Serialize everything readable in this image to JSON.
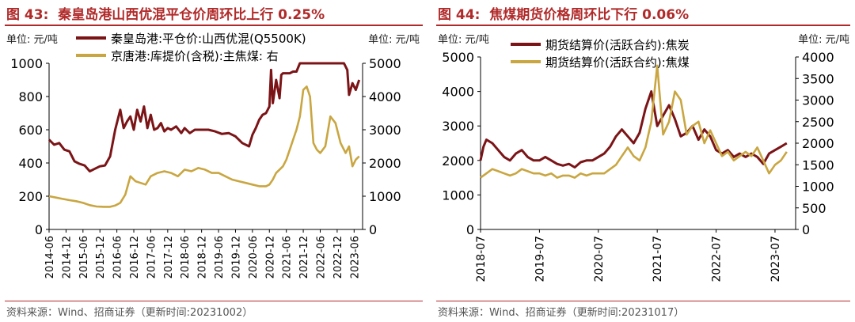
{
  "charts": [
    {
      "figure": "图 43:",
      "title": "秦皇岛港山西优混平仓价周环比上行 0.25%",
      "source": "资料来源：Wind、招商证券（更新时间:20231002）",
      "left_unit": "单位:  元/吨",
      "right_unit": "单位:  元/吨",
      "colors": {
        "series1": "#7b1417",
        "series2": "#c9a641"
      },
      "chart_data": {
        "type": "line",
        "xlabels": [
          "2014-06",
          "2014-12",
          "2015-06",
          "2015-12",
          "2016-06",
          "2016-12",
          "2017-06",
          "2017-12",
          "2018-06",
          "2018-12",
          "2019-06",
          "2019-12",
          "2020-06",
          "2020-12",
          "2021-06",
          "2021-12",
          "2022-06",
          "2022-12",
          "2023-06"
        ],
        "ylim_left": [
          0,
          1000
        ],
        "yticks_left": [
          0,
          200,
          400,
          600,
          800,
          1000
        ],
        "ylim_right": [
          0,
          5000
        ],
        "yticks_right": [
          0,
          1000,
          2000,
          3000,
          4000,
          5000
        ],
        "series": [
          {
            "name": "秦皇岛港:平仓价:山西优混(Q5500K)",
            "axis": "left",
            "x": [
              0,
              0.3,
              0.6,
              0.9,
              1.2,
              1.5,
              1.8,
              2.1,
              2.4,
              2.7,
              3.0,
              3.3,
              3.6,
              3.9,
              4.2,
              4.4,
              4.6,
              4.8,
              5.0,
              5.2,
              5.4,
              5.6,
              5.8,
              6.0,
              6.2,
              6.4,
              6.6,
              6.8,
              7.0,
              7.2,
              7.5,
              7.8,
              8.0,
              8.3,
              8.6,
              9.0,
              9.4,
              9.8,
              10.2,
              10.6,
              11.0,
              11.4,
              11.8,
              12.0,
              12.2,
              12.4,
              12.6,
              12.8,
              13.0,
              13.1,
              13.2,
              13.4,
              13.6,
              13.7,
              13.8,
              14.0,
              14.2,
              14.4,
              14.6,
              14.8,
              15.0,
              15.2,
              15.4,
              15.6,
              15.8,
              15.9,
              16.0,
              16.2,
              16.4,
              16.6,
              16.8,
              17.0,
              17.2,
              17.4,
              17.6,
              17.7,
              17.9,
              18.1,
              18.3
            ],
            "y": [
              540,
              510,
              520,
              480,
              470,
              410,
              395,
              385,
              350,
              365,
              380,
              385,
              440,
              600,
              720,
              610,
              650,
              680,
              600,
              720,
              650,
              740,
              610,
              690,
              600,
              610,
              640,
              590,
              610,
              600,
              620,
              580,
              610,
              580,
              600,
              600,
              600,
              590,
              575,
              580,
              560,
              520,
              500,
              570,
              610,
              660,
              690,
              700,
              740,
              960,
              760,
              900,
              790,
              930,
              940,
              940,
              940,
              950,
              950,
              1000,
              1000,
              1000,
              1000,
              1000,
              1000,
              1000,
              1000,
              1000,
              1000,
              1000,
              1000,
              1000,
              1000,
              1000,
              960,
              810,
              880,
              840,
              900
            ]
          },
          {
            "name": "京唐港:库提价(含税):主焦煤:  右",
            "axis": "right",
            "x": [
              0,
              0.4,
              0.8,
              1.2,
              1.6,
              2.0,
              2.4,
              2.8,
              3.2,
              3.6,
              3.9,
              4.2,
              4.5,
              4.8,
              5.1,
              5.4,
              5.7,
              6.0,
              6.4,
              6.8,
              7.2,
              7.6,
              8.0,
              8.4,
              8.8,
              9.2,
              9.6,
              10.0,
              10.4,
              10.8,
              11.2,
              11.6,
              12.0,
              12.4,
              12.8,
              13.0,
              13.2,
              13.4,
              13.6,
              13.8,
              14.0,
              14.2,
              14.4,
              14.6,
              14.8,
              15.0,
              15.2,
              15.4,
              15.6,
              15.8,
              16.0,
              16.3,
              16.6,
              16.9,
              17.2,
              17.5,
              17.7,
              17.9,
              18.1,
              18.3
            ],
            "y": [
              1000,
              960,
              920,
              880,
              850,
              800,
              730,
              690,
              680,
              680,
              720,
              800,
              1050,
              1600,
              1450,
              1400,
              1350,
              1600,
              1700,
              1750,
              1700,
              1600,
              1800,
              1750,
              1850,
              1800,
              1700,
              1700,
              1600,
              1500,
              1450,
              1400,
              1350,
              1300,
              1300,
              1350,
              1500,
              1700,
              1800,
              1900,
              2100,
              2400,
              2700,
              3000,
              3400,
              4200,
              4300,
              4000,
              2600,
              2400,
              2300,
              2500,
              3400,
              3200,
              2600,
              2300,
              2500,
              1900,
              2100,
              2200
            ]
          }
        ]
      }
    },
    {
      "figure": "图 44:",
      "title": "焦煤期货价格周环比下行 0.06%",
      "source": "资料来源：Wind、招商证券（更新时间:20231017）",
      "left_unit": "单位:  元/吨",
      "right_unit": "单位:  元/吨",
      "colors": {
        "series1": "#7b1417",
        "series2": "#c9a641"
      },
      "chart_data": {
        "type": "line",
        "xlabels": [
          "2018-07",
          "2019-07",
          "2020-07",
          "2021-07",
          "2022-07",
          "2023-07"
        ],
        "ylim_left": [
          0,
          5000
        ],
        "yticks_left": [
          0,
          1000,
          2000,
          3000,
          4000,
          5000
        ],
        "ylim_right": [
          0,
          4000
        ],
        "yticks_right": [
          0,
          500,
          1000,
          1500,
          2000,
          2500,
          3000,
          3500,
          4000
        ],
        "series": [
          {
            "name": "期货结算价(活跃合约):焦炭",
            "axis": "left",
            "x": [
              0,
              0.05,
              0.1,
              0.2,
              0.3,
              0.4,
              0.5,
              0.6,
              0.7,
              0.8,
              0.9,
              1.0,
              1.1,
              1.2,
              1.3,
              1.4,
              1.5,
              1.6,
              1.7,
              1.8,
              1.9,
              2.0,
              2.1,
              2.2,
              2.3,
              2.4,
              2.5,
              2.6,
              2.7,
              2.8,
              2.9,
              3.0,
              3.1,
              3.2,
              3.3,
              3.4,
              3.5,
              3.6,
              3.7,
              3.8,
              3.9,
              4.0,
              4.1,
              4.2,
              4.3,
              4.4,
              4.5,
              4.6,
              4.7,
              4.8,
              4.9,
              5.0,
              5.1,
              5.2
            ],
            "y": [
              2000,
              2400,
              2600,
              2500,
              2300,
              2100,
              2000,
              2200,
              2300,
              2100,
              2000,
              2000,
              2100,
              2000,
              1900,
              1850,
              1900,
              1800,
              1950,
              2000,
              2000,
              2100,
              2200,
              2400,
              2700,
              2900,
              2700,
              2500,
              2800,
              3500,
              4000,
              3000,
              3300,
              3600,
              3200,
              2700,
              2800,
              3000,
              2600,
              2900,
              2700,
              2300,
              2200,
              2300,
              2100,
              2200,
              2100,
              2200,
              2100,
              1900,
              2200,
              2300,
              2400,
              2500
            ]
          },
          {
            "name": "期货结算价(活跃合约):焦煤",
            "axis": "right",
            "x": [
              0,
              0.1,
              0.2,
              0.3,
              0.4,
              0.5,
              0.6,
              0.7,
              0.8,
              0.9,
              1.0,
              1.1,
              1.2,
              1.3,
              1.4,
              1.5,
              1.6,
              1.7,
              1.8,
              1.9,
              2.0,
              2.1,
              2.2,
              2.3,
              2.4,
              2.5,
              2.6,
              2.7,
              2.8,
              2.9,
              3.0,
              3.1,
              3.2,
              3.3,
              3.4,
              3.5,
              3.6,
              3.7,
              3.8,
              3.9,
              4.0,
              4.1,
              4.2,
              4.3,
              4.4,
              4.5,
              4.6,
              4.7,
              4.8,
              4.9,
              5.0,
              5.1,
              5.2
            ],
            "y": [
              1200,
              1300,
              1400,
              1350,
              1300,
              1250,
              1300,
              1400,
              1350,
              1300,
              1300,
              1250,
              1300,
              1200,
              1250,
              1250,
              1200,
              1300,
              1250,
              1300,
              1300,
              1300,
              1400,
              1500,
              1700,
              1900,
              1700,
              1600,
              1900,
              2500,
              3800,
              2200,
              2500,
              3200,
              3000,
              2200,
              2400,
              2500,
              2000,
              2300,
              2000,
              1700,
              1800,
              1600,
              1700,
              1800,
              1700,
              1900,
              1600,
              1300,
              1500,
              1600,
              1800
            ]
          }
        ]
      }
    }
  ]
}
